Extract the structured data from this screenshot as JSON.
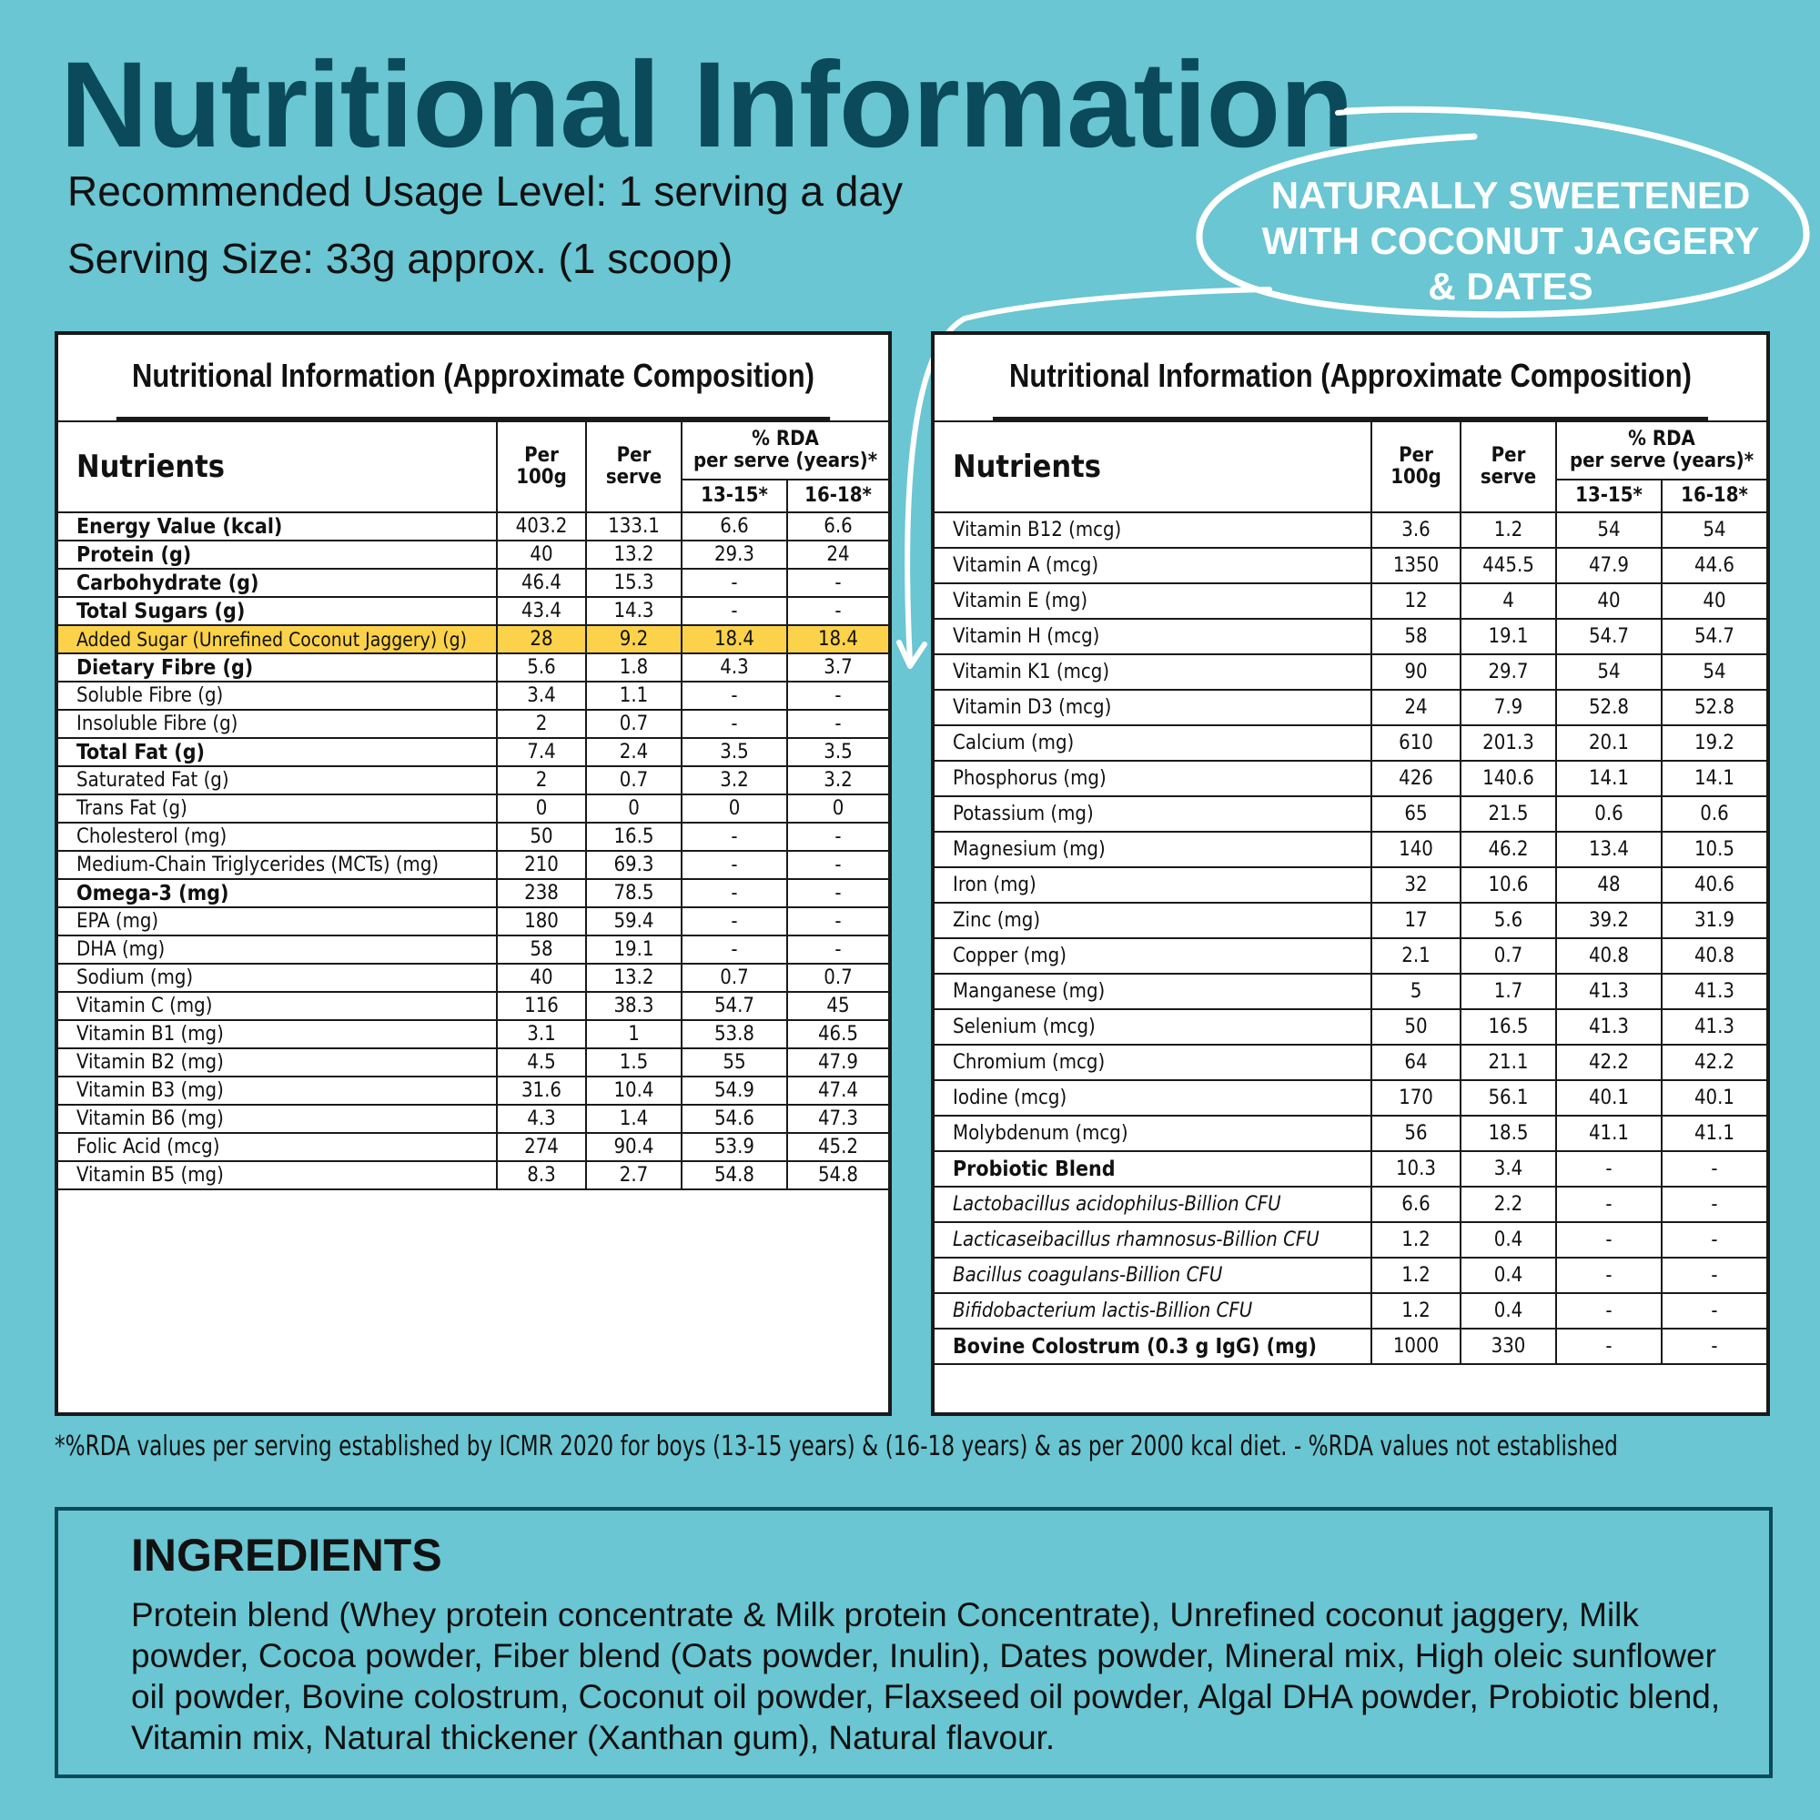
{
  "header": {
    "title": "Nutritional Information",
    "usage": "Recommended Usage Level: 1 serving a day",
    "serving": "Serving Size: 33g approx. (1 scoop)"
  },
  "badge": {
    "lines": [
      "NATURALLY SWEETENED",
      "WITH COCONUT JAGGERY",
      "& DATES"
    ]
  },
  "columns": {
    "nutrients": "Nutrients",
    "per100": "Per 100g",
    "perserve": "Per serve",
    "rda_line1": "% RDA",
    "rda_line2": "per serve (years)*",
    "age1": "13-15*",
    "age2": "16-18*"
  },
  "left_panel": {
    "title": "Nutritional Information (Approximate Composition)",
    "rows": [
      {
        "name": "Energy Value (kcal)",
        "p100": "403.2",
        "ps": "133.1",
        "r1": "6.6",
        "r2": "6.6",
        "style": "b"
      },
      {
        "name": "Protein (g)",
        "p100": "40",
        "ps": "13.2",
        "r1": "29.3",
        "r2": "24",
        "style": "b"
      },
      {
        "name": "Carbohydrate (g)",
        "p100": "46.4",
        "ps": "15.3",
        "r1": "-",
        "r2": "-",
        "style": "b"
      },
      {
        "name": "Total Sugars (g)",
        "p100": "43.4",
        "ps": "14.3",
        "r1": "-",
        "r2": "-",
        "style": "b i1"
      },
      {
        "name": "Added Sugar (Unrefined Coconut Jaggery) (g)",
        "p100": "28",
        "ps": "9.2",
        "r1": "18.4",
        "r2": "18.4",
        "style": "hl"
      },
      {
        "name": "Dietary Fibre (g)",
        "p100": "5.6",
        "ps": "1.8",
        "r1": "4.3",
        "r2": "3.7",
        "style": "b i1"
      },
      {
        "name": "Soluble Fibre (g)",
        "p100": "3.4",
        "ps": "1.1",
        "r1": "-",
        "r2": "-",
        "style": "i2"
      },
      {
        "name": "Insoluble Fibre (g)",
        "p100": "2",
        "ps": "0.7",
        "r1": "-",
        "r2": "-",
        "style": "i2"
      },
      {
        "name": "Total Fat (g)",
        "p100": "7.4",
        "ps": "2.4",
        "r1": "3.5",
        "r2": "3.5",
        "style": "b"
      },
      {
        "name": "Saturated Fat (g)",
        "p100": "2",
        "ps": "0.7",
        "r1": "3.2",
        "r2": "3.2",
        "style": "i1"
      },
      {
        "name": "Trans Fat (g)",
        "p100": "0",
        "ps": "0",
        "r1": "0",
        "r2": "0",
        "style": "i1"
      },
      {
        "name": "Cholesterol (mg)",
        "p100": "50",
        "ps": "16.5",
        "r1": "-",
        "r2": "-",
        "style": "i1"
      },
      {
        "name": "Medium-Chain Triglycerides (MCTs) (mg)",
        "p100": "210",
        "ps": "69.3",
        "r1": "-",
        "r2": "-",
        "style": "i1"
      },
      {
        "name": "Omega-3 (mg)",
        "p100": "238",
        "ps": "78.5",
        "r1": "-",
        "r2": "-",
        "style": "b i1"
      },
      {
        "name": "EPA (mg)",
        "p100": "180",
        "ps": "59.4",
        "r1": "-",
        "r2": "-",
        "style": "i3"
      },
      {
        "name": "DHA (mg)",
        "p100": "58",
        "ps": "19.1",
        "r1": "-",
        "r2": "-",
        "style": "i3"
      },
      {
        "name": "Sodium (mg)",
        "p100": "40",
        "ps": "13.2",
        "r1": "0.7",
        "r2": "0.7",
        "style": ""
      },
      {
        "name": "Vitamin C (mg)",
        "p100": "116",
        "ps": "38.3",
        "r1": "54.7",
        "r2": "45",
        "style": ""
      },
      {
        "name": "Vitamin B1 (mg)",
        "p100": "3.1",
        "ps": "1",
        "r1": "53.8",
        "r2": "46.5",
        "style": ""
      },
      {
        "name": "Vitamin B2 (mg)",
        "p100": "4.5",
        "ps": "1.5",
        "r1": "55",
        "r2": "47.9",
        "style": ""
      },
      {
        "name": "Vitamin B3 (mg)",
        "p100": "31.6",
        "ps": "10.4",
        "r1": "54.9",
        "r2": "47.4",
        "style": ""
      },
      {
        "name": "Vitamin B6 (mg)",
        "p100": "4.3",
        "ps": "1.4",
        "r1": "54.6",
        "r2": "47.3",
        "style": ""
      },
      {
        "name": "Folic Acid (mcg)",
        "p100": "274",
        "ps": "90.4",
        "r1": "53.9",
        "r2": "45.2",
        "style": ""
      },
      {
        "name": "Vitamin B5 (mg)",
        "p100": "8.3",
        "ps": "2.7",
        "r1": "54.8",
        "r2": "54.8",
        "style": ""
      }
    ]
  },
  "right_panel": {
    "title": "Nutritional Information (Approximate Composition)",
    "rows": [
      {
        "name": "Vitamin B12 (mcg)",
        "p100": "3.6",
        "ps": "1.2",
        "r1": "54",
        "r2": "54",
        "style": ""
      },
      {
        "name": "Vitamin A (mcg)",
        "p100": "1350",
        "ps": "445.5",
        "r1": "47.9",
        "r2": "44.6",
        "style": ""
      },
      {
        "name": "Vitamin E (mg)",
        "p100": "12",
        "ps": "4",
        "r1": "40",
        "r2": "40",
        "style": ""
      },
      {
        "name": "Vitamin H (mcg)",
        "p100": "58",
        "ps": "19.1",
        "r1": "54.7",
        "r2": "54.7",
        "style": ""
      },
      {
        "name": "Vitamin K1 (mcg)",
        "p100": "90",
        "ps": "29.7",
        "r1": "54",
        "r2": "54",
        "style": ""
      },
      {
        "name": "Vitamin D3 (mcg)",
        "p100": "24",
        "ps": "7.9",
        "r1": "52.8",
        "r2": "52.8",
        "style": ""
      },
      {
        "name": "Calcium (mg)",
        "p100": "610",
        "ps": "201.3",
        "r1": "20.1",
        "r2": "19.2",
        "style": ""
      },
      {
        "name": "Phosphorus (mg)",
        "p100": "426",
        "ps": "140.6",
        "r1": "14.1",
        "r2": "14.1",
        "style": ""
      },
      {
        "name": "Potassium (mg)",
        "p100": "65",
        "ps": "21.5",
        "r1": "0.6",
        "r2": "0.6",
        "style": ""
      },
      {
        "name": "Magnesium (mg)",
        "p100": "140",
        "ps": "46.2",
        "r1": "13.4",
        "r2": "10.5",
        "style": ""
      },
      {
        "name": "Iron (mg)",
        "p100": "32",
        "ps": "10.6",
        "r1": "48",
        "r2": "40.6",
        "style": ""
      },
      {
        "name": "Zinc (mg)",
        "p100": "17",
        "ps": "5.6",
        "r1": "39.2",
        "r2": "31.9",
        "style": ""
      },
      {
        "name": "Copper (mg)",
        "p100": "2.1",
        "ps": "0.7",
        "r1": "40.8",
        "r2": "40.8",
        "style": ""
      },
      {
        "name": "Manganese (mg)",
        "p100": "5",
        "ps": "1.7",
        "r1": "41.3",
        "r2": "41.3",
        "style": ""
      },
      {
        "name": "Selenium (mcg)",
        "p100": "50",
        "ps": "16.5",
        "r1": "41.3",
        "r2": "41.3",
        "style": ""
      },
      {
        "name": "Chromium (mcg)",
        "p100": "64",
        "ps": "21.1",
        "r1": "42.2",
        "r2": "42.2",
        "style": ""
      },
      {
        "name": "Iodine (mcg)",
        "p100": "170",
        "ps": "56.1",
        "r1": "40.1",
        "r2": "40.1",
        "style": ""
      },
      {
        "name": "Molybdenum (mcg)",
        "p100": "56",
        "ps": "18.5",
        "r1": "41.1",
        "r2": "41.1",
        "style": ""
      },
      {
        "name": "Probiotic Blend",
        "p100": "10.3",
        "ps": "3.4",
        "r1": "-",
        "r2": "-",
        "style": "b"
      },
      {
        "name": "Lactobacillus acidophilus-Billion CFU",
        "p100": "6.6",
        "ps": "2.2",
        "r1": "-",
        "r2": "-",
        "style": "ital"
      },
      {
        "name": "Lacticaseibacillus rhamnosus-Billion CFU",
        "p100": "1.2",
        "ps": "0.4",
        "r1": "-",
        "r2": "-",
        "style": "ital"
      },
      {
        "name": "Bacillus coagulans-Billion CFU",
        "p100": "1.2",
        "ps": "0.4",
        "r1": "-",
        "r2": "-",
        "style": "ital"
      },
      {
        "name": "Bifidobacterium lactis-Billion CFU",
        "p100": "1.2",
        "ps": "0.4",
        "r1": "-",
        "r2": "-",
        "style": "ital"
      },
      {
        "name": "Bovine Colostrum (0.3 g IgG) (mg)",
        "p100": "1000",
        "ps": "330",
        "r1": "-",
        "r2": "-",
        "style": "b"
      }
    ]
  },
  "footnote": "*%RDA values per serving established by ICMR 2020 for boys (13-15 years) & (16-18 years) & as per 2000 kcal diet.    - %RDA values not established",
  "ingredients": {
    "heading": "INGREDIENTS",
    "text": "Protein blend (Whey protein concentrate & Milk protein Concentrate), Unrefined coconut jaggery, Milk powder, Cocoa powder, Fiber blend (Oats powder, Inulin), Dates powder, Mineral mix, High oleic sunflower oil powder, Bovine colostrum, Coconut oil powder, Flaxseed oil powder, Algal DHA powder, Probiotic blend, Vitamin mix, Natural thickener (Xanthan gum), Natural flavour."
  },
  "colors": {
    "background": "#69c6d2",
    "title": "#0b4a5a",
    "highlight": "#fbd24a",
    "badge_text": "#ffffff"
  }
}
